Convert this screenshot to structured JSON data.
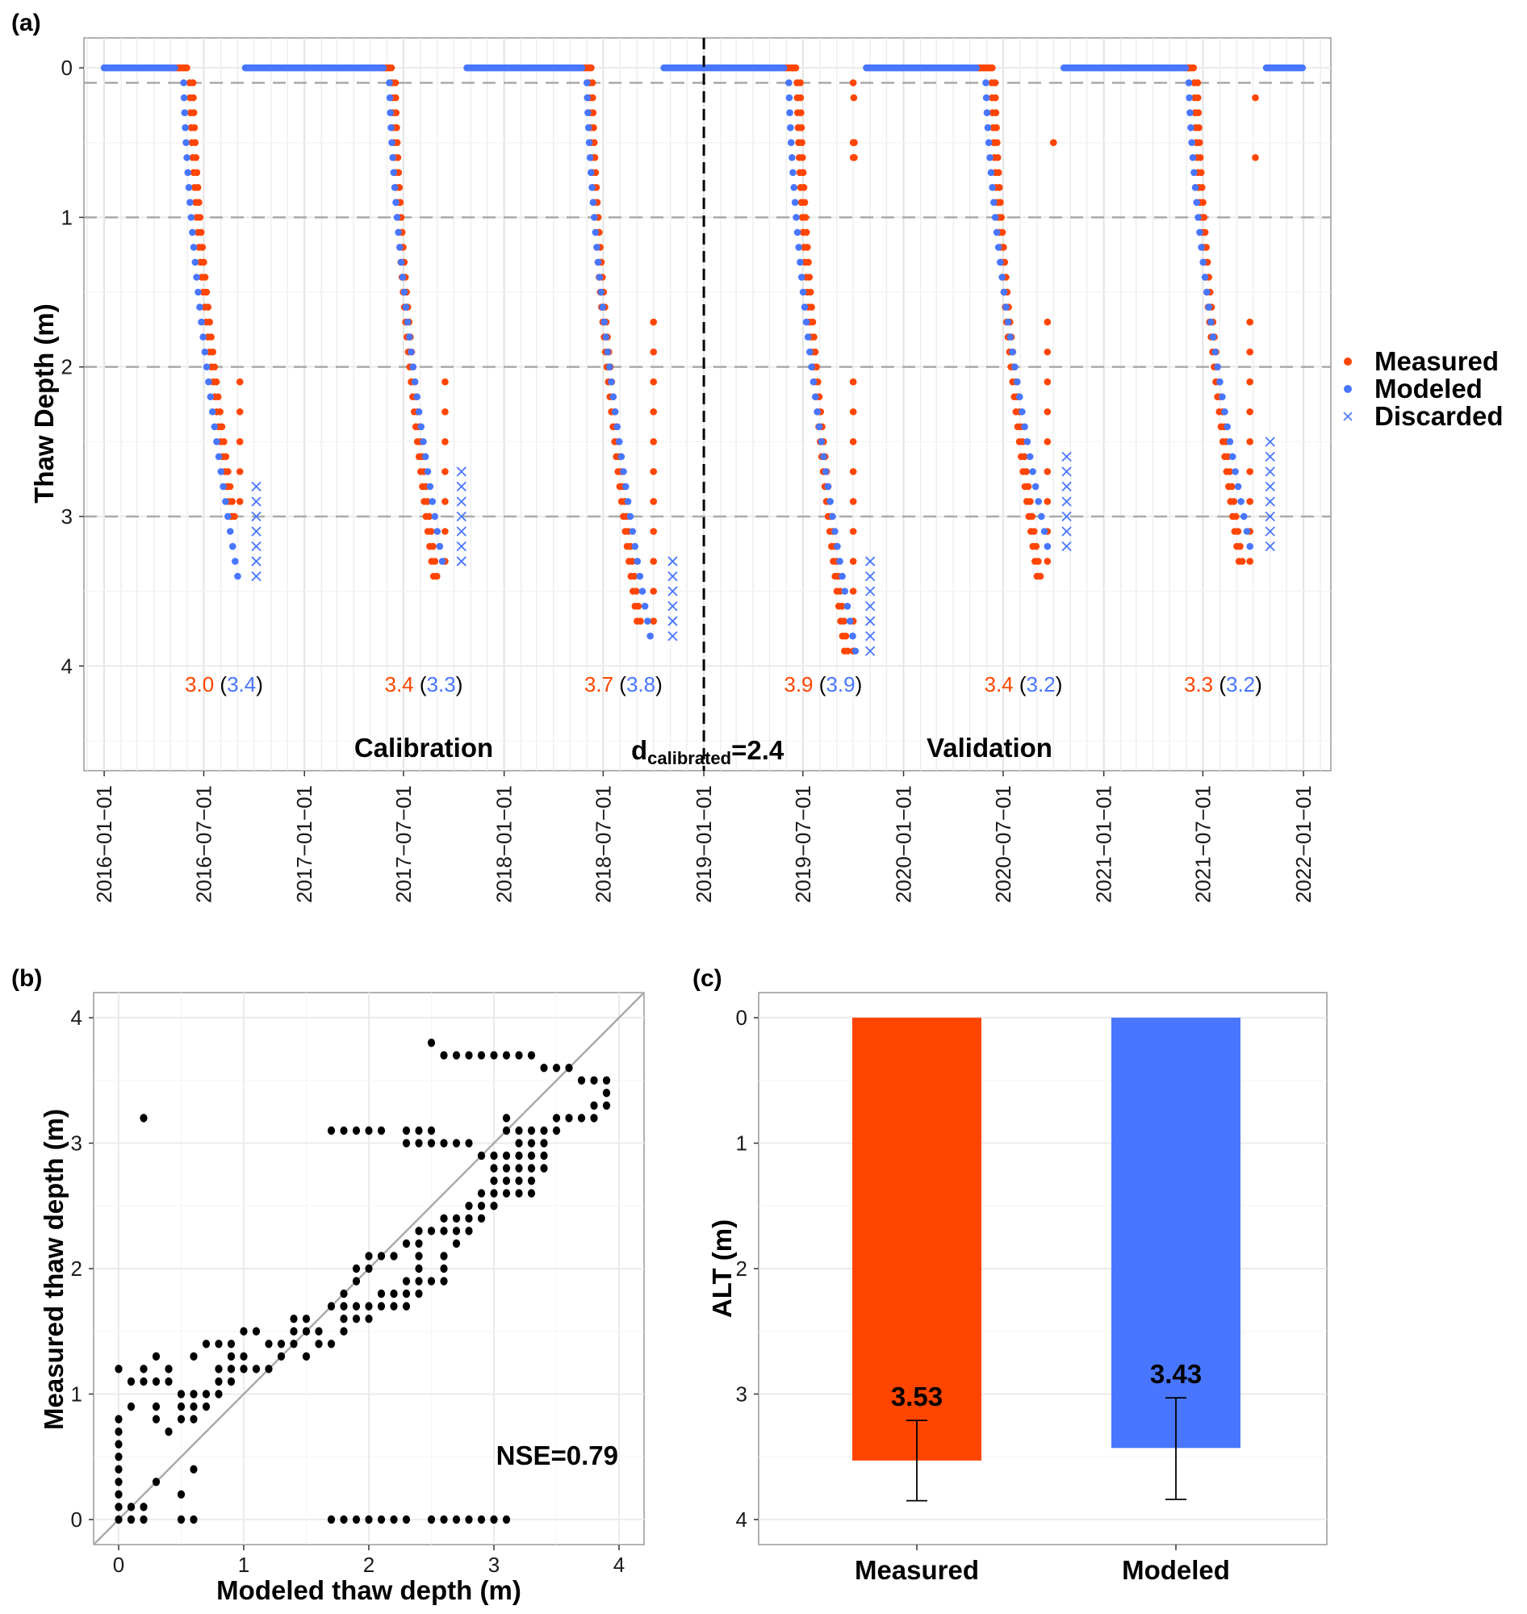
{
  "colors": {
    "measured": "#FF4500",
    "modeled": "#4876FF",
    "grid_major": "#ebebeb",
    "grid_dash": "#aaaaaa",
    "axis": "#999999",
    "identity_line": "#aaaaaa"
  },
  "chart_data": [
    {
      "id": "a",
      "panel_label": "(a)",
      "type": "scatter",
      "ylabel": "Thaw Depth (m)",
      "xlabel": "",
      "y_reversed": true,
      "ylim": [
        4.7,
        -0.2
      ],
      "xlim": [
        "2015-11-25",
        "2022-02-20"
      ],
      "y_ticks": [
        0,
        1,
        2,
        3,
        4
      ],
      "y_tick_labels": [
        "0",
        "1",
        "2",
        "3",
        "4"
      ],
      "x_ticks": [
        "2016-01-01",
        "2016-07-01",
        "2017-01-01",
        "2017-07-01",
        "2018-01-01",
        "2018-07-01",
        "2019-01-01",
        "2019-07-01",
        "2020-01-01",
        "2020-07-01",
        "2021-01-01",
        "2021-07-01",
        "2022-01-01"
      ],
      "x_tick_labels": [
        "2016−01−01",
        "2016−07−01",
        "2017−01−01",
        "2017−07−01",
        "2018−01−01",
        "2018−07−01",
        "2019−01−01",
        "2019−07−01",
        "2020−01−01",
        "2020−07−01",
        "2021−01−01",
        "2021−07−01",
        "2022−01−01"
      ],
      "reference_lines_dashed": [
        0.1,
        1,
        2,
        3
      ],
      "split_line_date": "2019-01-01",
      "legend": {
        "placement": "right",
        "entries": [
          {
            "label": "Measured",
            "marker": "dot",
            "color_key": "measured"
          },
          {
            "label": "Modeled",
            "marker": "dot",
            "color_key": "modeled"
          },
          {
            "label": "Discarded",
            "marker": "cross",
            "color_key": "modeled"
          }
        ]
      },
      "annotations": {
        "calibration": "Calibration",
        "validation": "Validation",
        "d_main": "d",
        "d_sub": "calibrated",
        "d_value": "=2.4"
      },
      "yearly_alt": [
        {
          "year": 2016,
          "measured": "3.0",
          "modeled": "3.4",
          "label_date": "2016-08-01"
        },
        {
          "year": 2017,
          "measured": "3.4",
          "modeled": "3.3",
          "label_date": "2017-08-01"
        },
        {
          "year": 2018,
          "measured": "3.7",
          "modeled": "3.8",
          "label_date": "2018-08-01"
        },
        {
          "year": 2019,
          "measured": "3.9",
          "modeled": "3.9",
          "label_date": "2019-08-01"
        },
        {
          "year": 2020,
          "measured": "3.4",
          "modeled": "3.2",
          "label_date": "2020-08-01"
        },
        {
          "year": 2021,
          "measured": "3.3",
          "modeled": "3.2",
          "label_date": "2021-08-01"
        }
      ],
      "series": [
        {
          "name": "Modeled",
          "frozen_segments": [
            {
              "start": "2016-01-01",
              "end": "2016-05-10",
              "depth": 0
            },
            {
              "start": "2016-09-15",
              "end": "2017-05-25",
              "depth": 0
            },
            {
              "start": "2017-10-25",
              "end": "2018-05-25",
              "depth": 0
            },
            {
              "start": "2018-10-20",
              "end": "2019-05-28",
              "depth": 0
            },
            {
              "start": "2019-10-25",
              "end": "2020-05-15",
              "depth": 0
            },
            {
              "start": "2020-10-20",
              "end": "2021-05-30",
              "depth": 0
            },
            {
              "start": "2021-10-25",
              "end": "2021-12-31",
              "depth": 0
            }
          ],
          "thaw_seasons": [
            {
              "start": "2016-05-25",
              "end": "2016-09-01",
              "max_depth": 3.4
            },
            {
              "start": "2017-06-05",
              "end": "2017-09-10",
              "max_depth": 3.3
            },
            {
              "start": "2018-06-01",
              "end": "2018-09-25",
              "max_depth": 3.8
            },
            {
              "start": "2019-06-05",
              "end": "2019-10-05",
              "max_depth": 3.9
            },
            {
              "start": "2020-05-30",
              "end": "2020-09-20",
              "max_depth": 3.2
            },
            {
              "start": "2021-06-05",
              "end": "2021-09-25",
              "max_depth": 3.2
            }
          ]
        },
        {
          "name": "Measured",
          "frozen_segments": [
            {
              "start": "2016-05-10",
              "end": "2016-06-01",
              "depth": 0
            },
            {
              "start": "2017-05-25",
              "end": "2017-06-10",
              "depth": 0
            },
            {
              "start": "2018-05-25",
              "end": "2018-06-10",
              "depth": 0
            },
            {
              "start": "2019-05-28",
              "end": "2019-06-20",
              "depth": 0
            },
            {
              "start": "2020-05-15",
              "end": "2020-06-12",
              "depth": 0
            },
            {
              "start": "2021-05-30",
              "end": "2021-06-15",
              "depth": 0
            }
          ],
          "thaw_seasons": [
            {
              "start": "2016-06-05",
              "end": "2016-08-20",
              "max_depth": 3.0,
              "late_column_date": "2016-09-05",
              "late_column_top": 2.1
            },
            {
              "start": "2017-06-10",
              "end": "2017-08-25",
              "max_depth": 3.4,
              "late_column_date": "2017-09-15",
              "late_column_top": 2.1
            },
            {
              "start": "2018-06-05",
              "end": "2018-09-01",
              "max_depth": 3.7,
              "late_column_date": "2018-10-01",
              "late_column_top": 1.7
            },
            {
              "start": "2019-06-20",
              "end": "2019-09-15",
              "max_depth": 3.9,
              "late_column_date": "2019-10-01",
              "late_column_top": 2.1
            },
            {
              "start": "2020-06-10",
              "end": "2020-09-01",
              "max_depth": 3.4,
              "late_column_date": "2020-09-20",
              "late_column_top": 1.7
            },
            {
              "start": "2021-06-15",
              "end": "2021-09-05",
              "max_depth": 3.3,
              "late_column_date": "2021-09-25",
              "late_column_top": 1.7
            }
          ],
          "outliers": [
            {
              "date": "2019-10-01",
              "depth": 0.1
            },
            {
              "date": "2019-10-02",
              "depth": 0.2
            },
            {
              "date": "2019-10-01",
              "depth": 0.5
            },
            {
              "date": "2019-10-03",
              "depth": 0.5
            },
            {
              "date": "2019-10-01",
              "depth": 0.6
            },
            {
              "date": "2019-10-03",
              "depth": 0.6
            },
            {
              "date": "2020-10-01",
              "depth": 0.5
            },
            {
              "date": "2021-10-05",
              "depth": 0.2
            },
            {
              "date": "2021-10-05",
              "depth": 0.6
            }
          ]
        },
        {
          "name": "Discarded",
          "groups": [
            {
              "date": "2016-10-05",
              "top": 2.8,
              "bottom": 3.4
            },
            {
              "date": "2017-10-15",
              "top": 2.7,
              "bottom": 3.3
            },
            {
              "date": "2018-11-05",
              "top": 3.3,
              "bottom": 3.8
            },
            {
              "date": "2019-11-01",
              "top": 3.3,
              "bottom": 3.9
            },
            {
              "date": "2020-10-25",
              "top": 2.6,
              "bottom": 3.2
            },
            {
              "date": "2021-11-01",
              "top": 2.5,
              "bottom": 3.2
            }
          ]
        }
      ]
    },
    {
      "id": "b",
      "panel_label": "(b)",
      "type": "scatter",
      "xlabel": "Modeled thaw depth (m)",
      "ylabel": "Measured thaw depth (m)",
      "xlim": [
        -0.2,
        4.2
      ],
      "ylim": [
        -0.2,
        4.2
      ],
      "x_ticks": [
        0,
        1,
        2,
        3,
        4
      ],
      "y_ticks": [
        0,
        1,
        2,
        3,
        4
      ],
      "x_tick_labels": [
        "0",
        "1",
        "2",
        "3",
        "4"
      ],
      "y_tick_labels": [
        "0",
        "1",
        "2",
        "3",
        "4"
      ],
      "identity_line": true,
      "annotation": "NSE=0.79",
      "points": [
        [
          0,
          0
        ],
        [
          0,
          0.1
        ],
        [
          0,
          0.2
        ],
        [
          0,
          0.3
        ],
        [
          0,
          0.4
        ],
        [
          0,
          0.5
        ],
        [
          0,
          0.6
        ],
        [
          0,
          0.7
        ],
        [
          0,
          0.8
        ],
        [
          0,
          1.2
        ],
        [
          0.1,
          0
        ],
        [
          0.1,
          0.1
        ],
        [
          0.1,
          0.9
        ],
        [
          0.1,
          1.1
        ],
        [
          0.2,
          0
        ],
        [
          0.2,
          0.1
        ],
        [
          0.2,
          1.1
        ],
        [
          0.2,
          1.2
        ],
        [
          0.2,
          3.2
        ],
        [
          0.3,
          0.3
        ],
        [
          0.3,
          0.8
        ],
        [
          0.3,
          0.9
        ],
        [
          0.3,
          1.1
        ],
        [
          0.3,
          1.3
        ],
        [
          0.4,
          0.7
        ],
        [
          0.4,
          1.1
        ],
        [
          0.4,
          1.2
        ],
        [
          0.5,
          0
        ],
        [
          0.5,
          0.2
        ],
        [
          0.5,
          0.8
        ],
        [
          0.5,
          0.9
        ],
        [
          0.5,
          1.0
        ],
        [
          0.6,
          0
        ],
        [
          0.6,
          0.4
        ],
        [
          0.6,
          0.8
        ],
        [
          0.6,
          0.9
        ],
        [
          0.6,
          1.0
        ],
        [
          0.6,
          1.3
        ],
        [
          0.7,
          0.9
        ],
        [
          0.7,
          1.0
        ],
        [
          0.7,
          1.4
        ],
        [
          0.8,
          1.0
        ],
        [
          0.8,
          1.1
        ],
        [
          0.8,
          1.2
        ],
        [
          0.8,
          1.4
        ],
        [
          0.9,
          1.1
        ],
        [
          0.9,
          1.2
        ],
        [
          0.9,
          1.3
        ],
        [
          0.9,
          1.4
        ],
        [
          1.0,
          1.2
        ],
        [
          1.0,
          1.3
        ],
        [
          1.0,
          1.5
        ],
        [
          1.1,
          1.2
        ],
        [
          1.1,
          1.5
        ],
        [
          1.2,
          1.2
        ],
        [
          1.2,
          1.4
        ],
        [
          1.3,
          1.3
        ],
        [
          1.3,
          1.4
        ],
        [
          1.4,
          1.4
        ],
        [
          1.4,
          1.5
        ],
        [
          1.4,
          1.6
        ],
        [
          1.5,
          1.3
        ],
        [
          1.5,
          1.5
        ],
        [
          1.5,
          1.6
        ],
        [
          1.6,
          1.4
        ],
        [
          1.6,
          1.5
        ],
        [
          1.7,
          0
        ],
        [
          1.7,
          1.4
        ],
        [
          1.7,
          1.7
        ],
        [
          1.7,
          3.1
        ],
        [
          1.8,
          0
        ],
        [
          1.8,
          1.5
        ],
        [
          1.8,
          1.6
        ],
        [
          1.8,
          1.7
        ],
        [
          1.8,
          1.8
        ],
        [
          1.8,
          3.1
        ],
        [
          1.9,
          0
        ],
        [
          1.9,
          1.6
        ],
        [
          1.9,
          1.7
        ],
        [
          1.9,
          1.9
        ],
        [
          1.9,
          2.0
        ],
        [
          1.9,
          3.1
        ],
        [
          2.0,
          0
        ],
        [
          2.0,
          1.6
        ],
        [
          2.0,
          1.7
        ],
        [
          2.0,
          2.0
        ],
        [
          2.0,
          2.1
        ],
        [
          2.0,
          3.1
        ],
        [
          2.1,
          0
        ],
        [
          2.1,
          1.7
        ],
        [
          2.1,
          1.8
        ],
        [
          2.1,
          2.1
        ],
        [
          2.1,
          3.1
        ],
        [
          2.2,
          0
        ],
        [
          2.2,
          1.7
        ],
        [
          2.2,
          1.8
        ],
        [
          2.2,
          2.1
        ],
        [
          2.3,
          0
        ],
        [
          2.3,
          1.7
        ],
        [
          2.3,
          1.8
        ],
        [
          2.3,
          1.9
        ],
        [
          2.3,
          2.2
        ],
        [
          2.3,
          3.0
        ],
        [
          2.3,
          3.1
        ],
        [
          2.4,
          1.8
        ],
        [
          2.4,
          1.9
        ],
        [
          2.4,
          2.0
        ],
        [
          2.4,
          2.1
        ],
        [
          2.4,
          2.2
        ],
        [
          2.4,
          2.3
        ],
        [
          2.4,
          3.0
        ],
        [
          2.4,
          3.1
        ],
        [
          2.5,
          0
        ],
        [
          2.5,
          1.9
        ],
        [
          2.5,
          2.3
        ],
        [
          2.5,
          3.0
        ],
        [
          2.5,
          3.1
        ],
        [
          2.5,
          3.8
        ],
        [
          2.6,
          0
        ],
        [
          2.6,
          1.9
        ],
        [
          2.6,
          2.0
        ],
        [
          2.6,
          2.1
        ],
        [
          2.6,
          2.3
        ],
        [
          2.6,
          2.4
        ],
        [
          2.6,
          3.0
        ],
        [
          2.6,
          3.7
        ],
        [
          2.7,
          0
        ],
        [
          2.7,
          2.2
        ],
        [
          2.7,
          2.3
        ],
        [
          2.7,
          2.4
        ],
        [
          2.7,
          3.0
        ],
        [
          2.7,
          3.7
        ],
        [
          2.8,
          0
        ],
        [
          2.8,
          2.3
        ],
        [
          2.8,
          2.4
        ],
        [
          2.8,
          2.5
        ],
        [
          2.8,
          3.0
        ],
        [
          2.8,
          3.7
        ],
        [
          2.9,
          0
        ],
        [
          2.9,
          2.4
        ],
        [
          2.9,
          2.5
        ],
        [
          2.9,
          2.6
        ],
        [
          2.9,
          2.9
        ],
        [
          2.9,
          3.7
        ],
        [
          3.0,
          0
        ],
        [
          3.0,
          2.5
        ],
        [
          3.0,
          2.6
        ],
        [
          3.0,
          2.7
        ],
        [
          3.0,
          2.8
        ],
        [
          3.0,
          2.9
        ],
        [
          3.0,
          3.7
        ],
        [
          3.1,
          0
        ],
        [
          3.1,
          2.6
        ],
        [
          3.1,
          2.7
        ],
        [
          3.1,
          2.8
        ],
        [
          3.1,
          2.9
        ],
        [
          3.1,
          3.1
        ],
        [
          3.1,
          3.2
        ],
        [
          3.1,
          3.7
        ],
        [
          3.2,
          2.6
        ],
        [
          3.2,
          2.7
        ],
        [
          3.2,
          2.8
        ],
        [
          3.2,
          2.9
        ],
        [
          3.2,
          3.0
        ],
        [
          3.2,
          3.1
        ],
        [
          3.2,
          3.7
        ],
        [
          3.3,
          2.6
        ],
        [
          3.3,
          2.7
        ],
        [
          3.3,
          2.8
        ],
        [
          3.3,
          2.9
        ],
        [
          3.3,
          3.0
        ],
        [
          3.3,
          3.1
        ],
        [
          3.3,
          3.7
        ],
        [
          3.4,
          2.8
        ],
        [
          3.4,
          2.9
        ],
        [
          3.4,
          3.0
        ],
        [
          3.4,
          3.1
        ],
        [
          3.4,
          3.6
        ],
        [
          3.5,
          3.1
        ],
        [
          3.5,
          3.2
        ],
        [
          3.5,
          3.6
        ],
        [
          3.6,
          3.2
        ],
        [
          3.6,
          3.6
        ],
        [
          3.7,
          3.2
        ],
        [
          3.7,
          3.5
        ],
        [
          3.8,
          3.2
        ],
        [
          3.8,
          3.3
        ],
        [
          3.8,
          3.5
        ],
        [
          3.9,
          3.3
        ],
        [
          3.9,
          3.4
        ],
        [
          3.9,
          3.5
        ]
      ]
    },
    {
      "id": "c",
      "panel_label": "(c)",
      "type": "bar",
      "ylabel": "ALT (m)",
      "xlabel": "",
      "y_reversed": true,
      "ylim": [
        4.2,
        -0.2
      ],
      "y_ticks": [
        0,
        1,
        2,
        3,
        4
      ],
      "y_tick_labels": [
        "0",
        "1",
        "2",
        "3",
        "4"
      ],
      "categories": [
        "Measured",
        "Modeled"
      ],
      "values": [
        3.53,
        3.43
      ],
      "value_labels": [
        "3.53",
        "3.43"
      ],
      "error_bars": [
        {
          "low": 3.21,
          "high": 3.85
        },
        {
          "low": 3.03,
          "high": 3.84
        }
      ],
      "bar_colors": [
        "#FF4500",
        "#4876FF"
      ]
    }
  ]
}
